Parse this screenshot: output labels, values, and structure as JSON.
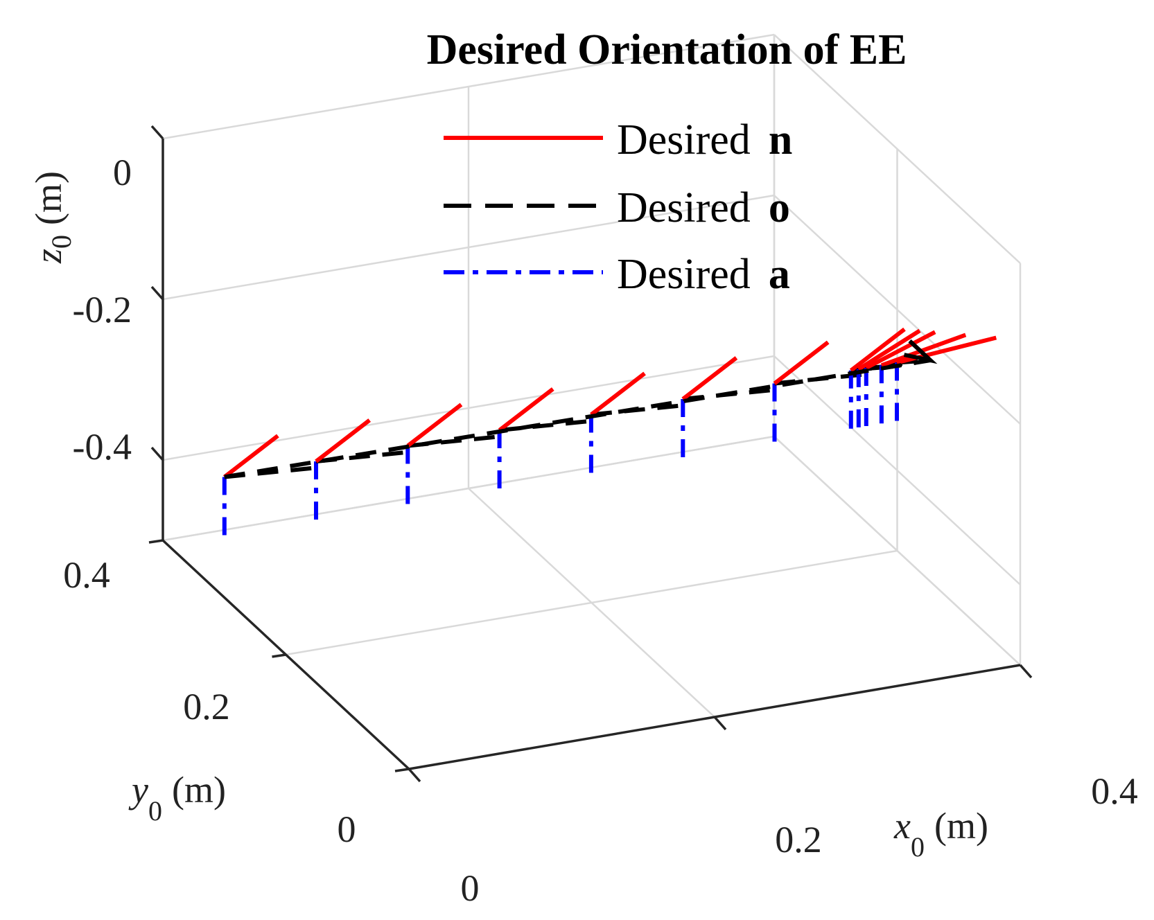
{
  "chart_data": {
    "type": "line3d",
    "title": "Desired Orientation of EE",
    "axes": {
      "x": {
        "label_var": "x",
        "label_sub": "0",
        "label_unit": "(m)",
        "ticks": [
          "0",
          "0.2",
          "0.4"
        ],
        "range": [
          0,
          0.4
        ]
      },
      "y": {
        "label_var": "y",
        "label_sub": "0",
        "label_unit": "(m)",
        "ticks": [
          "0",
          "0.2",
          "0.4"
        ],
        "range": [
          0,
          0.4
        ]
      },
      "z": {
        "label_var": "z",
        "label_sub": "0",
        "label_unit": "(m)",
        "ticks": [
          "0",
          "-0.2",
          "-0.4"
        ],
        "range": [
          -0.5,
          0
        ]
      }
    },
    "grid": true,
    "legend": {
      "placement": "top-right",
      "entries": [
        {
          "text": "Desired",
          "bold": "n",
          "color": "#ff0000",
          "style": "solid"
        },
        {
          "text": "Desired",
          "bold": "o",
          "color": "#000000",
          "style": "dashed"
        },
        {
          "text": "Desired",
          "bold": "a",
          "color": "#0000ff",
          "style": "dash-dot"
        }
      ]
    },
    "series": [
      {
        "name": "Desired n",
        "color": "#ff0000",
        "style": "solid"
      },
      {
        "name": "Desired o",
        "color": "#000000",
        "style": "dashed"
      },
      {
        "name": "Desired a",
        "color": "#0000ff",
        "style": "dash-dot"
      }
    ],
    "frames": [
      {
        "origin": [
          0.0,
          0.3,
          -0.35
        ],
        "n": [
          0.035,
          0.0,
          0.04
        ],
        "o": [
          0.06,
          -0.01,
          0.0
        ],
        "a": [
          0.0,
          0.0,
          -0.08
        ]
      },
      {
        "origin": [
          0.06,
          0.3,
          -0.35
        ],
        "n": [
          0.035,
          0.0,
          0.04
        ],
        "o": [
          0.06,
          -0.01,
          0.0
        ],
        "a": [
          0.0,
          0.0,
          -0.08
        ]
      },
      {
        "origin": [
          0.12,
          0.3,
          -0.35
        ],
        "n": [
          0.035,
          0.0,
          0.04
        ],
        "o": [
          0.06,
          -0.01,
          0.0
        ],
        "a": [
          0.0,
          0.0,
          -0.08
        ]
      },
      {
        "origin": [
          0.18,
          0.3,
          -0.35
        ],
        "n": [
          0.035,
          0.0,
          0.04
        ],
        "o": [
          0.06,
          -0.01,
          0.0
        ],
        "a": [
          0.0,
          0.0,
          -0.08
        ]
      },
      {
        "origin": [
          0.24,
          0.3,
          -0.35
        ],
        "n": [
          0.035,
          0.0,
          0.04
        ],
        "o": [
          0.06,
          -0.01,
          0.0
        ],
        "a": [
          0.0,
          0.0,
          -0.08
        ]
      },
      {
        "origin": [
          0.3,
          0.3,
          -0.35
        ],
        "n": [
          0.035,
          0.0,
          0.04
        ],
        "o": [
          0.06,
          -0.01,
          0.0
        ],
        "a": [
          0.0,
          0.0,
          -0.08
        ]
      },
      {
        "origin": [
          0.36,
          0.3,
          -0.35
        ],
        "n": [
          0.035,
          0.0,
          0.04
        ],
        "o": [
          0.06,
          -0.01,
          0.0
        ],
        "a": [
          0.0,
          0.0,
          -0.08
        ]
      },
      {
        "origin": [
          0.41,
          0.3,
          -0.35
        ],
        "n": [
          0.035,
          0.0,
          0.04
        ],
        "o": [
          0.03,
          -0.005,
          0.0
        ],
        "a": [
          0.0,
          0.0,
          -0.08
        ]
      },
      {
        "origin": [
          0.415,
          0.3,
          -0.35
        ],
        "n": [
          0.04,
          0.0,
          0.035
        ],
        "o": [
          0.02,
          -0.005,
          0.0
        ],
        "a": [
          0.0,
          0.0,
          -0.08
        ]
      },
      {
        "origin": [
          0.42,
          0.3,
          -0.35
        ],
        "n": [
          0.045,
          0.0,
          0.03
        ],
        "o": [
          0.02,
          -0.005,
          0.0
        ],
        "a": [
          0.0,
          0.0,
          -0.08
        ]
      },
      {
        "origin": [
          0.43,
          0.3,
          -0.35
        ],
        "n": [
          0.055,
          0.0,
          0.02
        ],
        "o": [
          0.02,
          -0.005,
          0.0
        ],
        "a": [
          0.0,
          0.0,
          -0.08
        ]
      },
      {
        "origin": [
          0.44,
          0.3,
          -0.35
        ],
        "n": [
          0.065,
          0.0,
          0.01
        ],
        "o": [
          0.02,
          -0.005,
          0.0
        ],
        "a": [
          0.0,
          0.0,
          -0.08
        ]
      }
    ]
  }
}
